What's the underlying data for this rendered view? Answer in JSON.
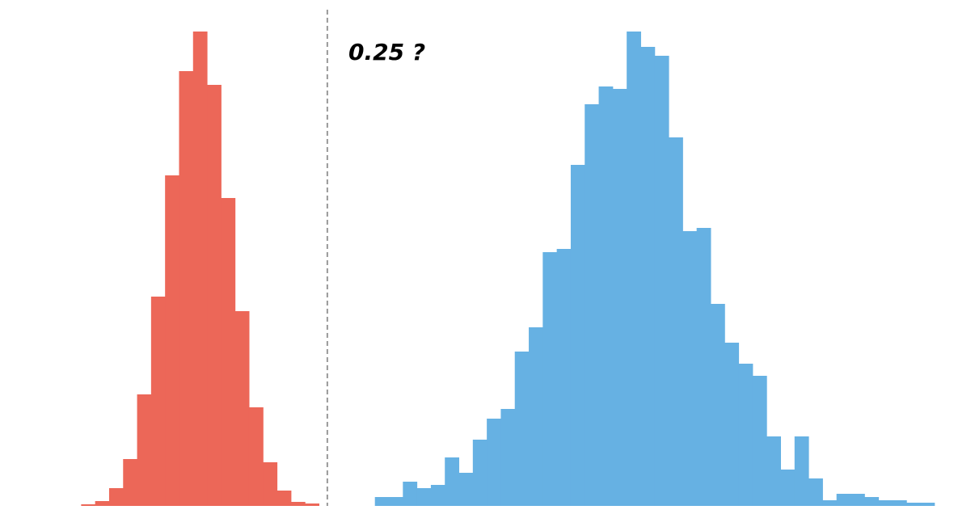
{
  "chart_data": {
    "type": "histogram",
    "annotation": "0.25 ?",
    "threshold": 17.6,
    "xlim": [
      -5.8,
      63.9
    ],
    "ylim": [
      0,
      600
    ],
    "series": [
      {
        "color": "#ec6758",
        "bins": [
          0,
          1,
          2,
          3,
          4,
          5,
          6,
          7,
          8,
          9,
          10,
          11,
          12,
          13,
          14,
          15,
          16,
          17
        ],
        "values": [
          2,
          6,
          22,
          58,
          138,
          259,
          409,
          538,
          587,
          521,
          381,
          241,
          122,
          54,
          19,
          5,
          3
        ]
      },
      {
        "color": "#66b1e3",
        "bins": [
          21,
          22,
          23,
          24,
          25,
          26,
          27,
          28,
          29,
          30,
          31,
          32,
          33,
          34,
          35,
          36,
          37,
          38,
          39,
          40,
          41,
          42,
          43,
          44,
          45,
          46,
          47,
          48,
          49,
          50,
          51,
          52,
          53,
          54,
          55,
          56,
          57,
          58,
          59,
          60,
          61
        ],
        "values": [
          11,
          11,
          30,
          22,
          26,
          60,
          41,
          82,
          108,
          120,
          191,
          221,
          314,
          318,
          422,
          497,
          519,
          516,
          587,
          568,
          557,
          456,
          340,
          344,
          250,
          202,
          176,
          161,
          86,
          45,
          86,
          34,
          7,
          15,
          15,
          11,
          7,
          7,
          4,
          4
        ]
      }
    ]
  }
}
